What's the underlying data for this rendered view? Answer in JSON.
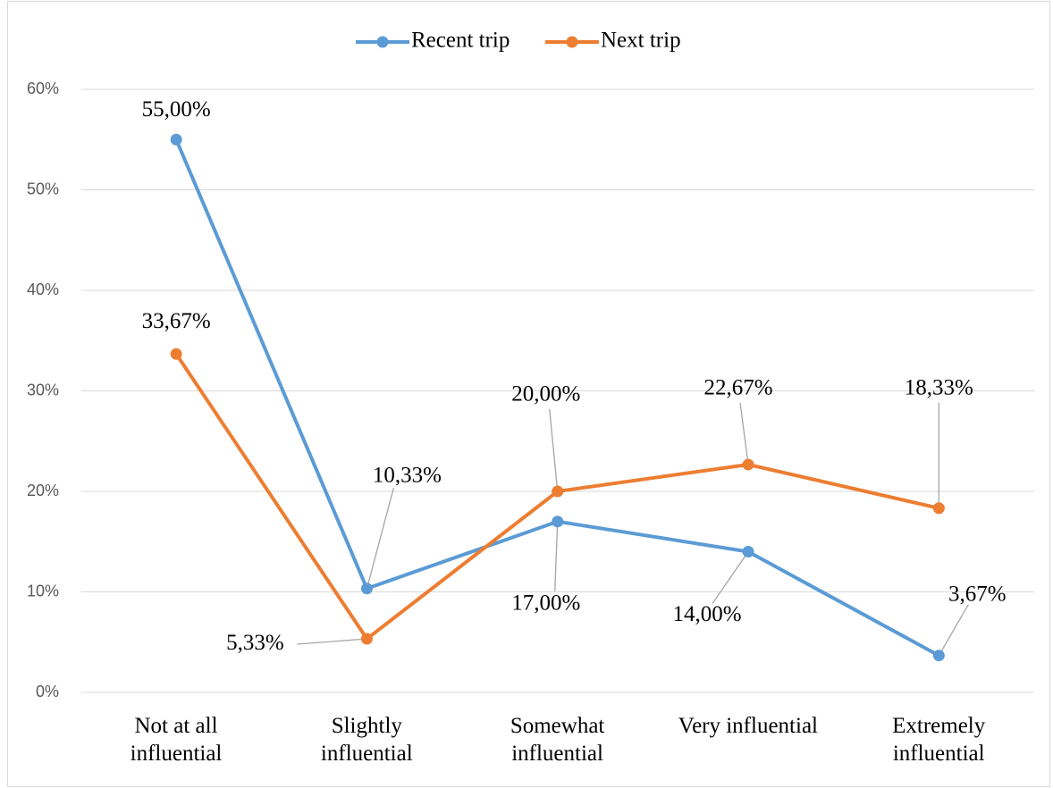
{
  "chart_data": {
    "type": "line",
    "categories": [
      "Not at all\ninfluential",
      "Slightly\ninfluential",
      "Somewhat\ninfluential",
      "Very influential",
      "Extremely\ninfluential"
    ],
    "series": [
      {
        "name": "Recent trip",
        "color": "#5b9bd5",
        "values": [
          55,
          10.33,
          17,
          14,
          3.67
        ],
        "value_labels": [
          "55,00%",
          "10,33%",
          "17,00%",
          "14,00%",
          "3,67%"
        ]
      },
      {
        "name": "Next trip",
        "color": "#ed7d31",
        "values": [
          33.67,
          5.33,
          20,
          22.67,
          18.33
        ],
        "value_labels": [
          "33,67%",
          "5,33%",
          "20,00%",
          "22,67%",
          "18,33%"
        ]
      }
    ],
    "ylim": [
      0,
      60
    ],
    "yticks": [
      {
        "value": 0,
        "label": "0%"
      },
      {
        "value": 10,
        "label": "10%"
      },
      {
        "value": 20,
        "label": "20%"
      },
      {
        "value": 30,
        "label": "30%"
      },
      {
        "value": 40,
        "label": "40%"
      },
      {
        "value": 50,
        "label": "50%"
      },
      {
        "value": 60,
        "label": "60%"
      }
    ],
    "grid": true,
    "legend": "top"
  }
}
